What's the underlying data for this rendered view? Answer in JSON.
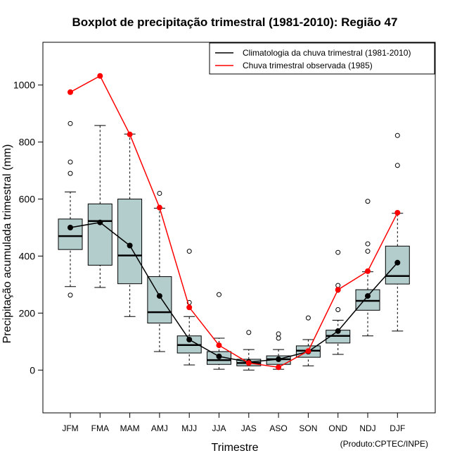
{
  "chart_data": {
    "type": "boxplot",
    "title": "Boxplot de precipitação trimestral (1981-2010): Região 47",
    "xlabel": "Trimestre",
    "ylabel": "Precipitação acumulada trimestral (mm)",
    "credit": "(Produto:CPTEC/INPE)",
    "ylim": [
      -150,
      1150
    ],
    "yticks": [
      0,
      200,
      400,
      600,
      800,
      1000
    ],
    "categories": [
      "JFM",
      "FMA",
      "MAM",
      "AMJ",
      "MJJ",
      "JJA",
      "JAS",
      "ASO",
      "SON",
      "OND",
      "NDJ",
      "DJF"
    ],
    "boxes": [
      {
        "whisker_low": 293,
        "q1": 423,
        "median": 470,
        "q3": 530,
        "whisker_high": 625,
        "outliers": [
          263,
          690,
          730,
          865
        ]
      },
      {
        "whisker_low": 290,
        "q1": 368,
        "median": 523,
        "q3": 583,
        "whisker_high": 858,
        "outliers": []
      },
      {
        "whisker_low": 188,
        "q1": 303,
        "median": 402,
        "q3": 600,
        "whisker_high": 828,
        "outliers": []
      },
      {
        "whisker_low": 65,
        "q1": 165,
        "median": 203,
        "q3": 328,
        "whisker_high": 568,
        "outliers": [
          620
        ]
      },
      {
        "whisker_low": 18,
        "q1": 60,
        "median": 88,
        "q3": 120,
        "whisker_high": 188,
        "outliers": [
          237,
          417
        ]
      },
      {
        "whisker_low": 3,
        "q1": 20,
        "median": 35,
        "q3": 65,
        "whisker_high": 112,
        "outliers": [
          265
        ]
      },
      {
        "whisker_low": 0,
        "q1": 15,
        "median": 25,
        "q3": 38,
        "whisker_high": 72,
        "outliers": [
          132
        ]
      },
      {
        "whisker_low": 3,
        "q1": 20,
        "median": 38,
        "q3": 50,
        "whisker_high": 72,
        "outliers": [
          112,
          127
        ]
      },
      {
        "whisker_low": 15,
        "q1": 45,
        "median": 68,
        "q3": 85,
        "whisker_high": 107,
        "outliers": [
          183
        ]
      },
      {
        "whisker_low": 55,
        "q1": 95,
        "median": 120,
        "q3": 140,
        "whisker_high": 175,
        "outliers": [
          212,
          280,
          297,
          413
        ]
      },
      {
        "whisker_low": 120,
        "q1": 210,
        "median": 243,
        "q3": 282,
        "whisker_high": 345,
        "outliers": [
          417,
          443,
          592
        ]
      },
      {
        "whisker_low": 137,
        "q1": 302,
        "median": 330,
        "q3": 435,
        "whisker_high": 550,
        "outliers": [
          718,
          823
        ]
      }
    ],
    "series": [
      {
        "name": "Climatologia da chuva trimestral (1981-2010)",
        "color": "#000000",
        "values": [
          500,
          518,
          437,
          260,
          107,
          48,
          28,
          38,
          65,
          137,
          260,
          377
        ]
      },
      {
        "name": "Chuva trimestral observada (1985)",
        "color": "#ff0000",
        "values": [
          975,
          1032,
          827,
          570,
          220,
          87,
          25,
          10,
          67,
          282,
          347,
          552
        ]
      }
    ],
    "legend_position": "top-right",
    "box_fill": "#b3cccc"
  }
}
